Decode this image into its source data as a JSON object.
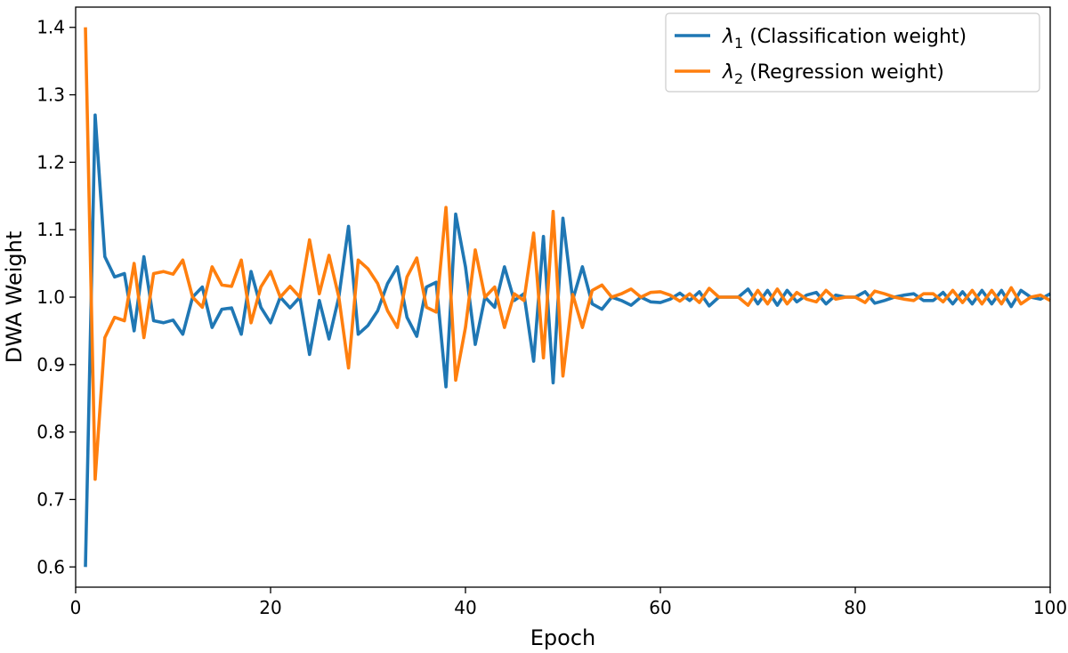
{
  "chart_data": {
    "type": "line",
    "xlabel": "Epoch",
    "ylabel": "DWA Weight",
    "xlim": [
      0,
      100
    ],
    "ylim": [
      0.57,
      1.43
    ],
    "xticks": [
      "0",
      "20",
      "40",
      "60",
      "80",
      "100"
    ],
    "yticks": [
      "0.6",
      "0.7",
      "0.8",
      "0.9",
      "1.0",
      "1.1",
      "1.2",
      "1.3",
      "1.4"
    ],
    "grid": false,
    "legend_position": "top-right",
    "x": [
      1,
      2,
      3,
      4,
      5,
      6,
      7,
      8,
      9,
      10,
      11,
      12,
      13,
      14,
      15,
      16,
      17,
      18,
      19,
      20,
      21,
      22,
      23,
      24,
      25,
      26,
      27,
      28,
      29,
      30,
      31,
      32,
      33,
      34,
      35,
      36,
      37,
      38,
      39,
      40,
      41,
      42,
      43,
      44,
      45,
      46,
      47,
      48,
      49,
      50,
      51,
      52,
      53,
      54,
      55,
      56,
      57,
      58,
      59,
      60,
      61,
      62,
      63,
      64,
      65,
      66,
      67,
      68,
      69,
      70,
      71,
      72,
      73,
      74,
      75,
      76,
      77,
      78,
      79,
      80,
      81,
      82,
      83,
      84,
      85,
      86,
      87,
      88,
      89,
      90,
      91,
      92,
      93,
      94,
      95,
      96,
      97,
      98,
      99,
      100
    ],
    "series": [
      {
        "name": "λ1 (Classification weight)",
        "legend_main": "λ",
        "legend_sub": "1",
        "legend_rest": " (Classification weight)",
        "color": "#1f77b4",
        "values": [
          0.6,
          1.27,
          1.06,
          1.03,
          1.035,
          0.95,
          1.06,
          0.965,
          0.962,
          0.966,
          0.945,
          1.0,
          1.015,
          0.955,
          0.982,
          0.984,
          0.945,
          1.038,
          0.985,
          0.962,
          1.0,
          0.984,
          1.0,
          0.915,
          0.995,
          0.938,
          1.0,
          1.105,
          0.945,
          0.958,
          0.98,
          1.02,
          1.045,
          0.97,
          0.942,
          1.015,
          1.022,
          0.867,
          1.123,
          1.045,
          0.93,
          1.0,
          0.985,
          1.045,
          0.995,
          1.005,
          0.905,
          1.09,
          0.873,
          1.117,
          0.996,
          1.045,
          0.99,
          0.982,
          1.0,
          0.995,
          0.988,
          1.0,
          0.993,
          0.992,
          0.997,
          1.006,
          0.995,
          1.008,
          0.987,
          1.0,
          1.0,
          1.0,
          1.012,
          0.99,
          1.01,
          0.988,
          1.01,
          0.993,
          1.003,
          1.007,
          0.99,
          1.003,
          1.0,
          1.0,
          1.008,
          0.991,
          0.995,
          1.0,
          1.003,
          1.005,
          0.995,
          0.995,
          1.007,
          0.99,
          1.008,
          0.99,
          1.01,
          0.99,
          1.01,
          0.986,
          1.01,
          1.0,
          0.997,
          1.005
        ]
      },
      {
        "name": "λ2 (Regression weight)",
        "legend_main": "λ",
        "legend_sub": "2",
        "legend_rest": " (Regression weight)",
        "color": "#ff7f0e",
        "values": [
          1.4,
          0.73,
          0.94,
          0.97,
          0.965,
          1.05,
          0.94,
          1.035,
          1.038,
          1.034,
          1.055,
          1.0,
          0.985,
          1.045,
          1.018,
          1.016,
          1.055,
          0.962,
          1.015,
          1.038,
          1.0,
          1.016,
          1.0,
          1.085,
          1.005,
          1.062,
          1.0,
          0.895,
          1.055,
          1.042,
          1.02,
          0.98,
          0.955,
          1.03,
          1.058,
          0.985,
          0.978,
          1.133,
          0.877,
          0.955,
          1.07,
          1.0,
          1.015,
          0.955,
          1.005,
          0.995,
          1.095,
          0.91,
          1.127,
          0.883,
          1.004,
          0.955,
          1.01,
          1.018,
          1.0,
          1.005,
          1.012,
          1.0,
          1.007,
          1.008,
          1.003,
          0.994,
          1.005,
          0.992,
          1.013,
          1.0,
          1.0,
          1.0,
          0.988,
          1.01,
          0.99,
          1.012,
          0.99,
          1.007,
          0.997,
          0.993,
          1.01,
          0.997,
          1.0,
          1.0,
          0.992,
          1.009,
          1.005,
          1.0,
          0.997,
          0.995,
          1.005,
          1.005,
          0.993,
          1.01,
          0.992,
          1.01,
          0.99,
          1.01,
          0.99,
          1.014,
          0.99,
          1.0,
          1.003,
          0.995
        ]
      }
    ]
  }
}
